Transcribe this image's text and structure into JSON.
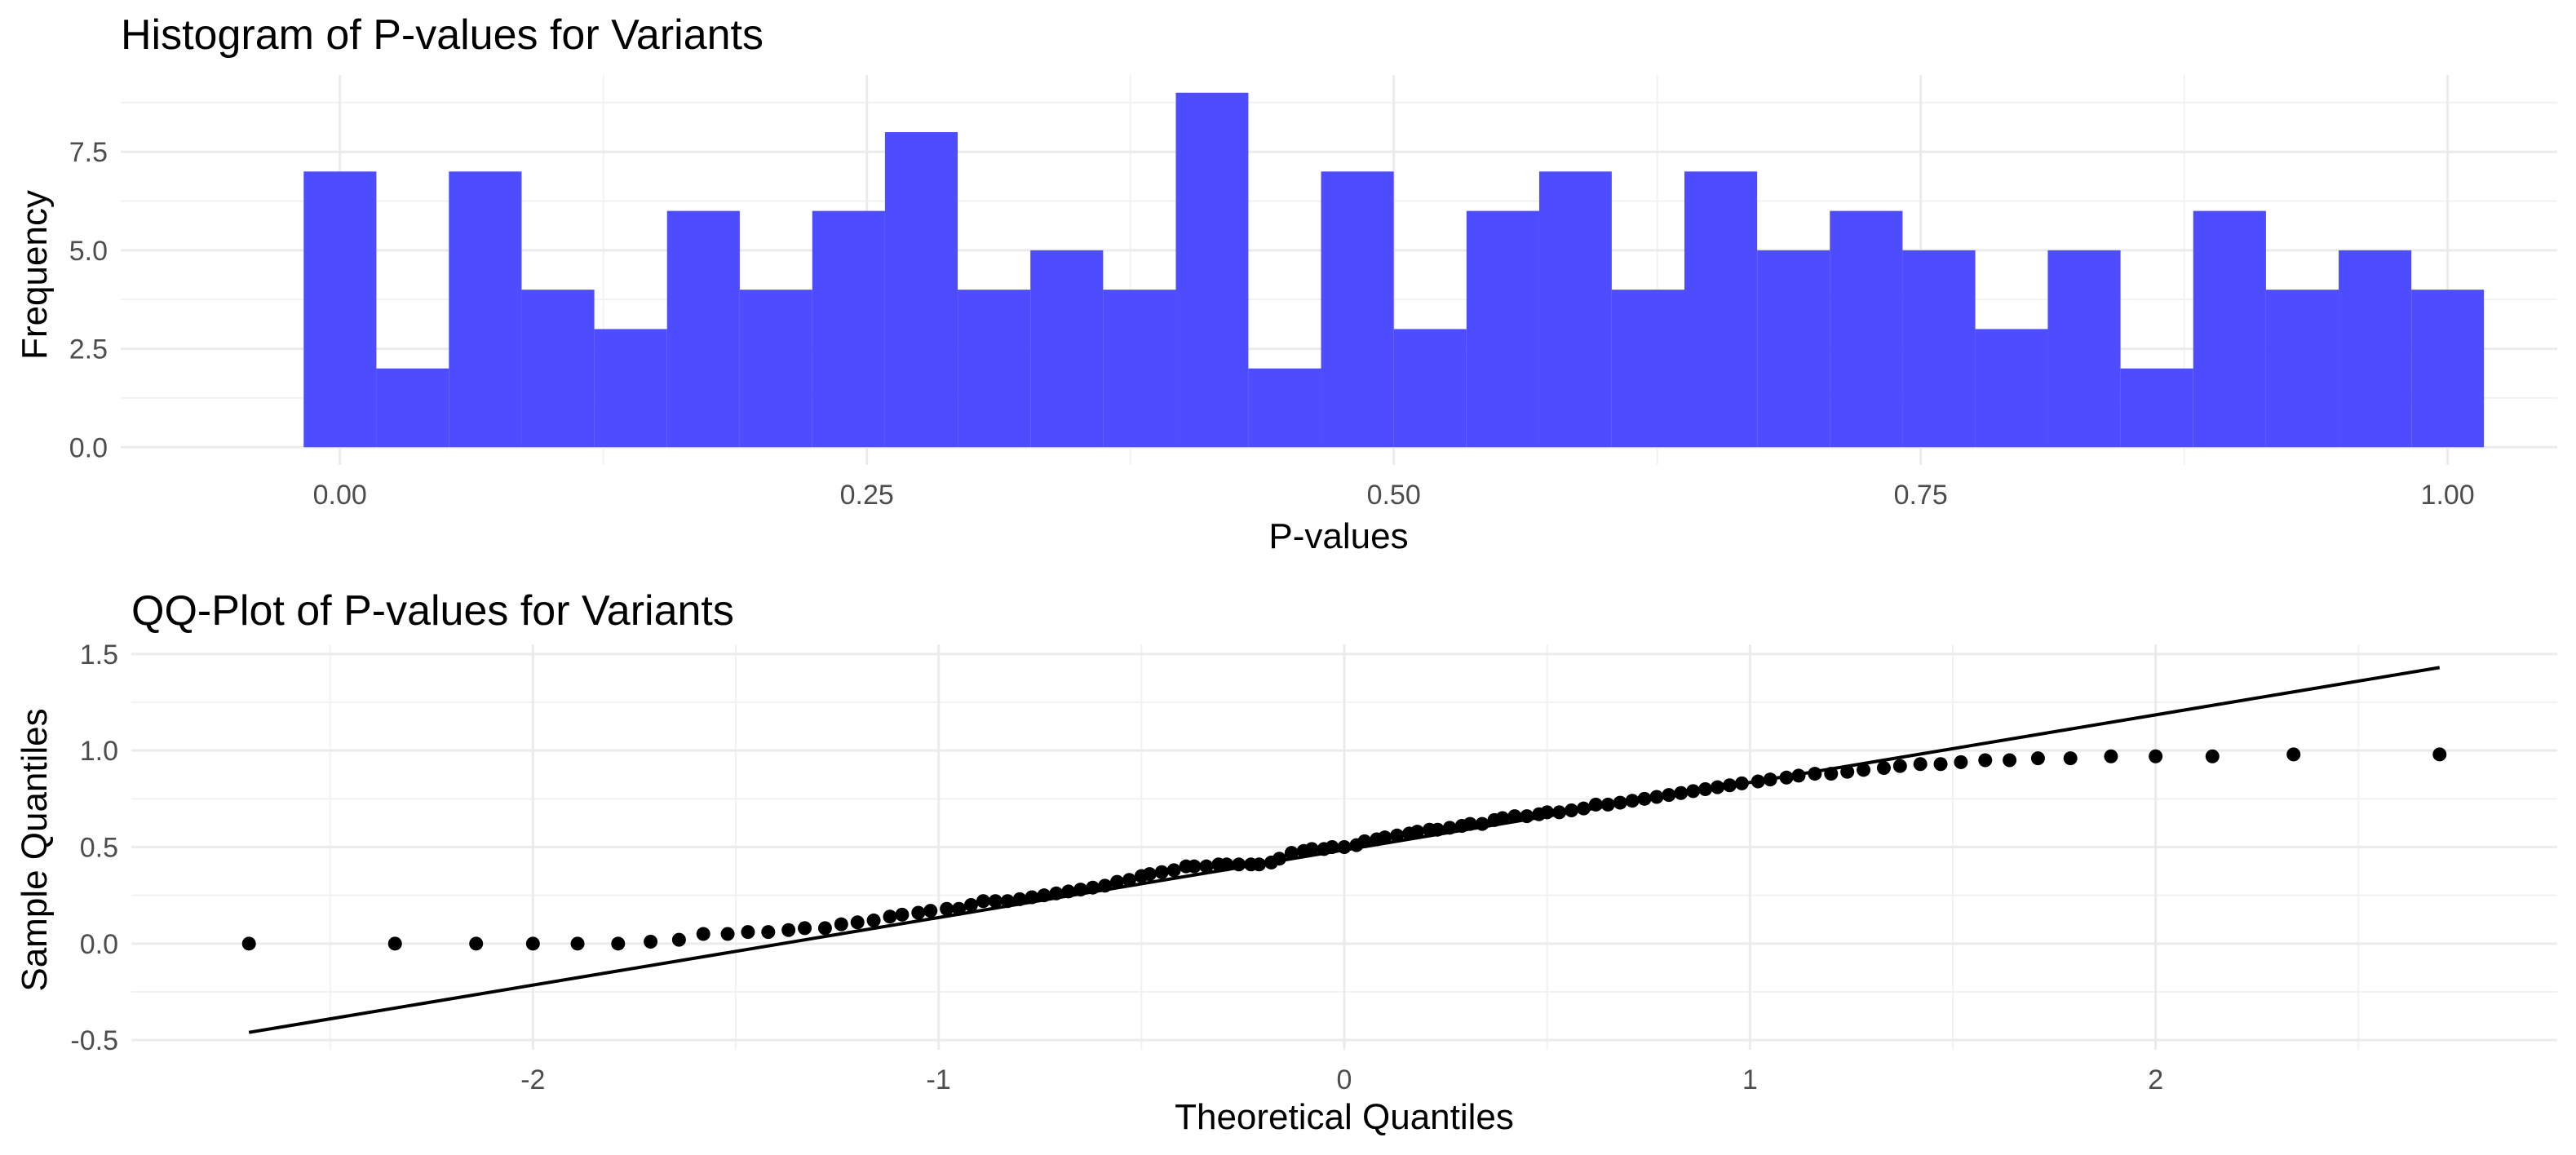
{
  "chart_data": [
    {
      "type": "bar",
      "title": "Histogram of P-values for Variants",
      "xlabel": "P-values",
      "ylabel": "Frequency",
      "bin_width": 0.0345,
      "bin_start": -0.0172,
      "bins": [
        {
          "x0": -0.0172,
          "x1": 0.0173,
          "count": 7
        },
        {
          "x0": 0.0173,
          "x1": 0.0517,
          "count": 2
        },
        {
          "x0": 0.0517,
          "x1": 0.0862,
          "count": 7
        },
        {
          "x0": 0.0862,
          "x1": 0.1207,
          "count": 4
        },
        {
          "x0": 0.1207,
          "x1": 0.1552,
          "count": 3
        },
        {
          "x0": 0.1552,
          "x1": 0.1897,
          "count": 6
        },
        {
          "x0": 0.1897,
          "x1": 0.2241,
          "count": 4
        },
        {
          "x0": 0.2241,
          "x1": 0.2586,
          "count": 6
        },
        {
          "x0": 0.2586,
          "x1": 0.2931,
          "count": 8
        },
        {
          "x0": 0.2931,
          "x1": 0.3276,
          "count": 4
        },
        {
          "x0": 0.3276,
          "x1": 0.3621,
          "count": 5
        },
        {
          "x0": 0.3621,
          "x1": 0.3966,
          "count": 4
        },
        {
          "x0": 0.3966,
          "x1": 0.431,
          "count": 9
        },
        {
          "x0": 0.431,
          "x1": 0.4655,
          "count": 2
        },
        {
          "x0": 0.4655,
          "x1": 0.5,
          "count": 7
        },
        {
          "x0": 0.5,
          "x1": 0.5345,
          "count": 3
        },
        {
          "x0": 0.5345,
          "x1": 0.569,
          "count": 6
        },
        {
          "x0": 0.569,
          "x1": 0.6034,
          "count": 7
        },
        {
          "x0": 0.6034,
          "x1": 0.6379,
          "count": 4
        },
        {
          "x0": 0.6379,
          "x1": 0.6724,
          "count": 7
        },
        {
          "x0": 0.6724,
          "x1": 0.7069,
          "count": 5
        },
        {
          "x0": 0.7069,
          "x1": 0.7414,
          "count": 6
        },
        {
          "x0": 0.7414,
          "x1": 0.7759,
          "count": 5
        },
        {
          "x0": 0.7759,
          "x1": 0.8103,
          "count": 3
        },
        {
          "x0": 0.8103,
          "x1": 0.8448,
          "count": 5
        },
        {
          "x0": 0.8448,
          "x1": 0.8793,
          "count": 2
        },
        {
          "x0": 0.8793,
          "x1": 0.9138,
          "count": 6
        },
        {
          "x0": 0.9138,
          "x1": 0.9483,
          "count": 4
        },
        {
          "x0": 0.9483,
          "x1": 0.9828,
          "count": 5
        },
        {
          "x0": 0.9828,
          "x1": 1.0172,
          "count": 4
        }
      ],
      "xlim": [
        -0.104,
        1.052
      ],
      "ylim": [
        -0.45,
        9.45
      ],
      "x_ticks": [
        0.0,
        0.25,
        0.5,
        0.75,
        1.0
      ],
      "x_tick_labels": [
        "0.00",
        "0.25",
        "0.50",
        "0.75",
        "1.00"
      ],
      "x_minor_ticks": [
        0.125,
        0.375,
        0.625,
        0.875
      ],
      "y_ticks": [
        0.0,
        2.5,
        5.0,
        7.5
      ],
      "y_tick_labels": [
        "0.0",
        "2.5",
        "5.0",
        "7.5"
      ],
      "y_minor_ticks": [
        1.25,
        3.75,
        6.25,
        8.75
      ],
      "bar_color": "#4d4dff",
      "grid": true
    },
    {
      "type": "scatter",
      "title": "QQ-Plot of P-values for Variants",
      "xlabel": "Theoretical Quantiles",
      "ylabel": "Sample Quantiles",
      "point_color": "#000000",
      "line_color": "#000000",
      "reference_line": {
        "x": [
          -2.7,
          2.7
        ],
        "y": [
          -0.46,
          1.43
        ]
      },
      "xlim": [
        -2.99,
        2.99
      ],
      "ylim": [
        -0.55,
        1.55
      ],
      "x_ticks": [
        -2,
        -1,
        0,
        1,
        2
      ],
      "x_tick_labels": [
        "-2",
        "-1",
        "0",
        "1",
        "2"
      ],
      "x_minor_ticks": [
        -2.5,
        -1.5,
        -0.5,
        0.5,
        1.5,
        2.5
      ],
      "y_ticks": [
        -0.5,
        0.0,
        0.5,
        1.0,
        1.5
      ],
      "y_tick_labels": [
        "-0.5",
        "0.0",
        "0.5",
        "1.0",
        "1.5"
      ],
      "y_minor_ticks": [
        -0.25,
        0.25,
        0.75,
        1.25
      ],
      "grid": true,
      "points": {
        "x": [
          -2.7,
          -2.34,
          -2.14,
          -2.0,
          -1.89,
          -1.79,
          -1.71,
          -1.64,
          -1.58,
          -1.52,
          -1.47,
          -1.42,
          -1.37,
          -1.33,
          -1.28,
          -1.24,
          -1.2,
          -1.16,
          -1.12,
          -1.09,
          -1.05,
          -1.02,
          -0.98,
          -0.95,
          -0.92,
          -0.89,
          -0.86,
          -0.83,
          -0.8,
          -0.77,
          -0.74,
          -0.71,
          -0.68,
          -0.65,
          -0.62,
          -0.59,
          -0.56,
          -0.53,
          -0.5,
          -0.48,
          -0.45,
          -0.42,
          -0.39,
          -0.37,
          -0.34,
          -0.31,
          -0.29,
          -0.26,
          -0.23,
          -0.21,
          -0.18,
          -0.16,
          -0.13,
          -0.1,
          -0.08,
          -0.05,
          -0.03,
          0.0,
          0.03,
          0.05,
          0.08,
          0.1,
          0.13,
          0.16,
          0.18,
          0.21,
          0.23,
          0.26,
          0.29,
          0.31,
          0.34,
          0.37,
          0.39,
          0.42,
          0.45,
          0.48,
          0.5,
          0.53,
          0.56,
          0.59,
          0.62,
          0.65,
          0.68,
          0.71,
          0.74,
          0.77,
          0.8,
          0.83,
          0.86,
          0.89,
          0.92,
          0.95,
          0.98,
          1.02,
          1.05,
          1.09,
          1.12,
          1.16,
          1.2,
          1.24,
          1.28,
          1.33,
          1.37,
          1.42,
          1.47,
          1.52,
          1.58,
          1.64,
          1.71,
          1.79,
          1.89,
          2.0,
          2.14,
          2.34,
          2.7
        ],
        "y": [
          0.0,
          0.0,
          0.0,
          0.0,
          0.0,
          0.0,
          0.01,
          0.02,
          0.05,
          0.05,
          0.06,
          0.06,
          0.07,
          0.08,
          0.08,
          0.1,
          0.11,
          0.12,
          0.14,
          0.15,
          0.16,
          0.17,
          0.18,
          0.18,
          0.2,
          0.22,
          0.22,
          0.22,
          0.23,
          0.24,
          0.25,
          0.26,
          0.27,
          0.28,
          0.29,
          0.3,
          0.32,
          0.33,
          0.35,
          0.36,
          0.37,
          0.38,
          0.4,
          0.4,
          0.4,
          0.41,
          0.41,
          0.41,
          0.41,
          0.41,
          0.42,
          0.44,
          0.47,
          0.48,
          0.49,
          0.49,
          0.5,
          0.5,
          0.51,
          0.53,
          0.54,
          0.55,
          0.56,
          0.57,
          0.58,
          0.59,
          0.59,
          0.6,
          0.61,
          0.62,
          0.62,
          0.64,
          0.65,
          0.66,
          0.66,
          0.67,
          0.68,
          0.68,
          0.69,
          0.7,
          0.72,
          0.72,
          0.73,
          0.74,
          0.75,
          0.76,
          0.77,
          0.78,
          0.79,
          0.8,
          0.81,
          0.82,
          0.83,
          0.84,
          0.85,
          0.86,
          0.87,
          0.88,
          0.88,
          0.89,
          0.9,
          0.91,
          0.92,
          0.93,
          0.93,
          0.94,
          0.95,
          0.95,
          0.96,
          0.96,
          0.97,
          0.97,
          0.97,
          0.98,
          0.98
        ]
      }
    }
  ]
}
